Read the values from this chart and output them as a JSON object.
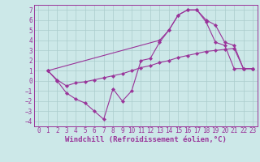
{
  "background_color": "#cce8e8",
  "grid_color": "#aacccc",
  "line_color": "#993399",
  "marker_color": "#993399",
  "xlabel": "Windchill (Refroidissement éolien,°C)",
  "xlim": [
    -0.5,
    23.5
  ],
  "ylim": [
    -4.5,
    7.5
  ],
  "xticks": [
    0,
    1,
    2,
    3,
    4,
    5,
    6,
    7,
    8,
    9,
    10,
    11,
    12,
    13,
    14,
    15,
    16,
    17,
    18,
    19,
    20,
    21,
    22,
    23
  ],
  "yticks": [
    -4,
    -3,
    -2,
    -1,
    0,
    1,
    2,
    3,
    4,
    5,
    6,
    7
  ],
  "line_upper_x": [
    1,
    13,
    14,
    15,
    16,
    17,
    18,
    19,
    20,
    21,
    22,
    23
  ],
  "line_upper_y": [
    1,
    4,
    5,
    6.5,
    7,
    7,
    6,
    5.5,
    3.8,
    3.5,
    1.2,
    1.2
  ],
  "line_middle_x": [
    1,
    2,
    3,
    4,
    5,
    6,
    7,
    8,
    9,
    10,
    11,
    12,
    13,
    14,
    15,
    16,
    17,
    18,
    19,
    20,
    21,
    22,
    23
  ],
  "line_middle_y": [
    1,
    0.1,
    -0.5,
    -0.2,
    -0.1,
    0.1,
    0.3,
    0.5,
    0.7,
    1.0,
    1.3,
    1.5,
    1.8,
    2.0,
    2.3,
    2.5,
    2.7,
    2.9,
    3.0,
    3.1,
    3.2,
    1.2,
    1.2
  ],
  "line_lower_x": [
    1,
    2,
    3,
    4,
    5,
    6,
    7,
    8,
    9,
    10,
    11,
    12,
    13,
    14,
    15,
    16,
    17,
    18,
    19,
    20,
    21,
    22,
    23
  ],
  "line_lower_y": [
    1,
    0,
    -1.2,
    -1.8,
    -2.2,
    -3.0,
    -3.8,
    -0.8,
    -2.0,
    -1.0,
    2.0,
    2.2,
    3.8,
    5.0,
    6.5,
    7.0,
    7.0,
    5.8,
    3.8,
    3.5,
    1.2,
    1.2,
    1.2
  ],
  "font_family": "monospace",
  "tick_fontsize": 5.5,
  "label_fontsize": 6.5
}
